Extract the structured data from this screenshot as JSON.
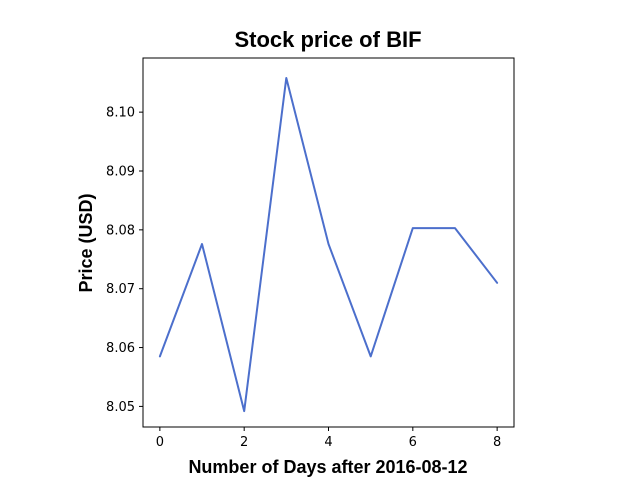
{
  "chart_data": {
    "type": "line",
    "title": "Stock price of BIF",
    "xlabel": "Number of Days after 2016-08-12",
    "ylabel": "Price (USD)",
    "x": [
      0,
      1,
      2,
      3,
      4,
      5,
      6,
      7,
      8
    ],
    "series": [
      {
        "values": [
          8.0585,
          8.0776,
          8.0492,
          8.1058,
          8.0776,
          8.0585,
          8.0803,
          8.0803,
          8.071
        ],
        "color": "#4c6fcc"
      }
    ],
    "xlim": [
      -0.4,
      8.4
    ],
    "ylim": [
      8.0465,
      8.1092
    ],
    "xticks": [
      0,
      2,
      4,
      6,
      8
    ],
    "yticks": [
      8.05,
      8.06,
      8.07,
      8.08,
      8.09,
      8.1
    ],
    "ytick_labels": [
      "8.05",
      "8.06",
      "8.07",
      "8.08",
      "8.09",
      "8.10"
    ],
    "grid": false,
    "legend": "none"
  }
}
